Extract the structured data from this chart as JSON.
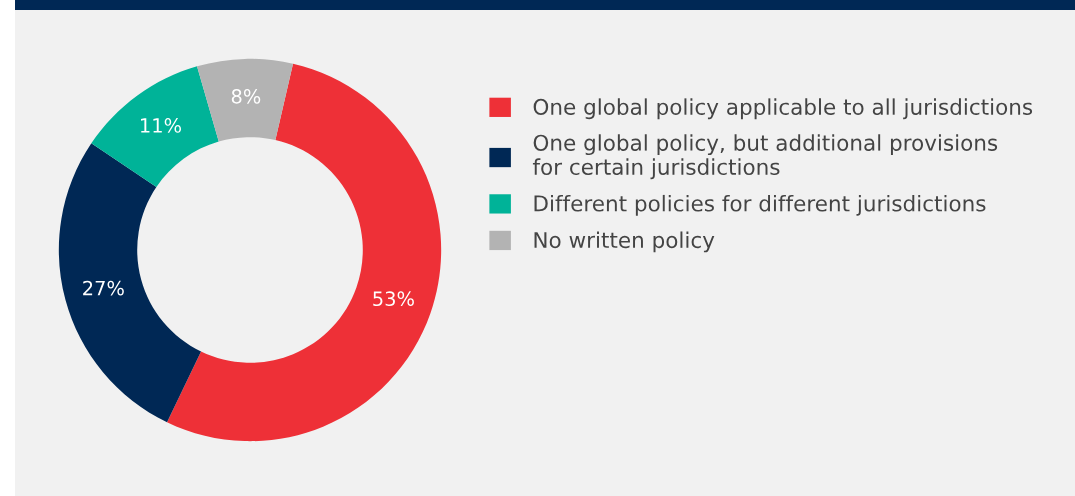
{
  "chart_data": {
    "type": "donut",
    "categories": [
      "One global policy applicable to all jurisdictions",
      "One global policy, but additional provisions\nfor certain jurisdictions",
      "Different policies for different jurisdictions",
      "No written policy"
    ],
    "values": [
      53,
      27,
      11,
      8
    ],
    "colors": [
      "#ee3037",
      "#002855",
      "#00b398",
      "#b3b3b3"
    ],
    "value_labels": [
      "53%",
      "27%",
      "11%",
      "8%"
    ],
    "legend": "right"
  }
}
